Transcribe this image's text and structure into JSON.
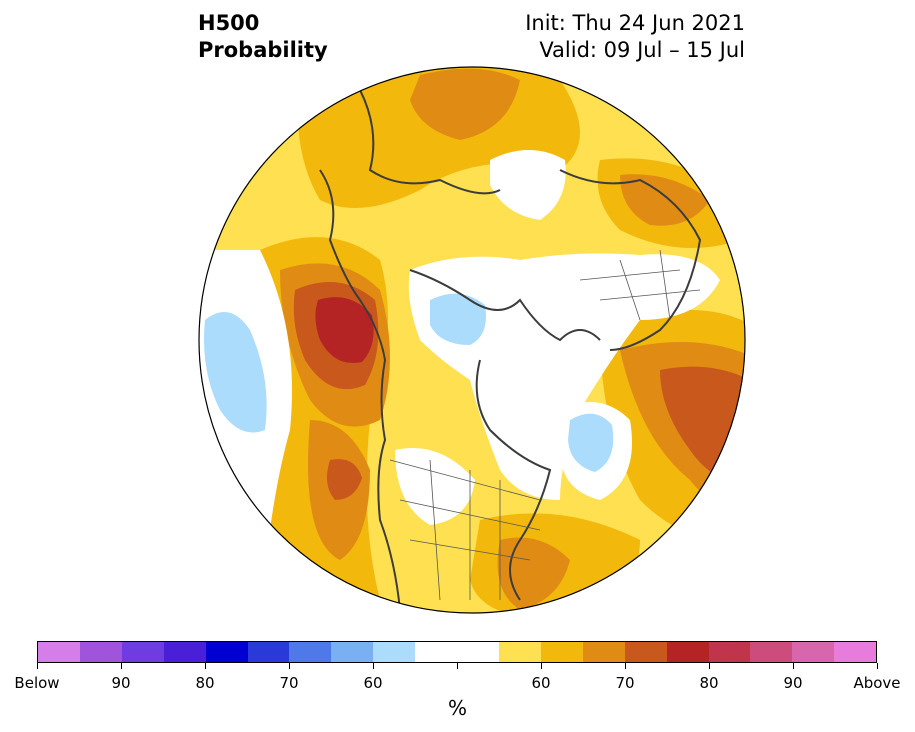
{
  "title": {
    "line1": "H500",
    "line2": "Probability",
    "init": "Init: Thu 24 Jun 2021",
    "valid": "Valid: 09 Jul – 15 Jul"
  },
  "map": {
    "projection": "north-polar-stereographic",
    "features": [
      "coastlines",
      "country-borders",
      "us-state-borders"
    ]
  },
  "colorbar": {
    "colors": [
      "#d57de8",
      "#a054dc",
      "#6e3ce0",
      "#4a1fd8",
      "#0000d2",
      "#2a3ad8",
      "#4f78e8",
      "#78b0f2",
      "#acdcfc",
      "#ffffff",
      "#ffffff",
      "#ffe050",
      "#f2b80c",
      "#e08c14",
      "#c8581c",
      "#b42424",
      "#c0344c",
      "#cc4c7c",
      "#d866ac",
      "#e87cdc"
    ],
    "tick_labels": [
      "Below",
      "90",
      "80",
      "70",
      "60",
      "",
      "60",
      "70",
      "80",
      "90",
      "Above"
    ],
    "unit": "%"
  }
}
